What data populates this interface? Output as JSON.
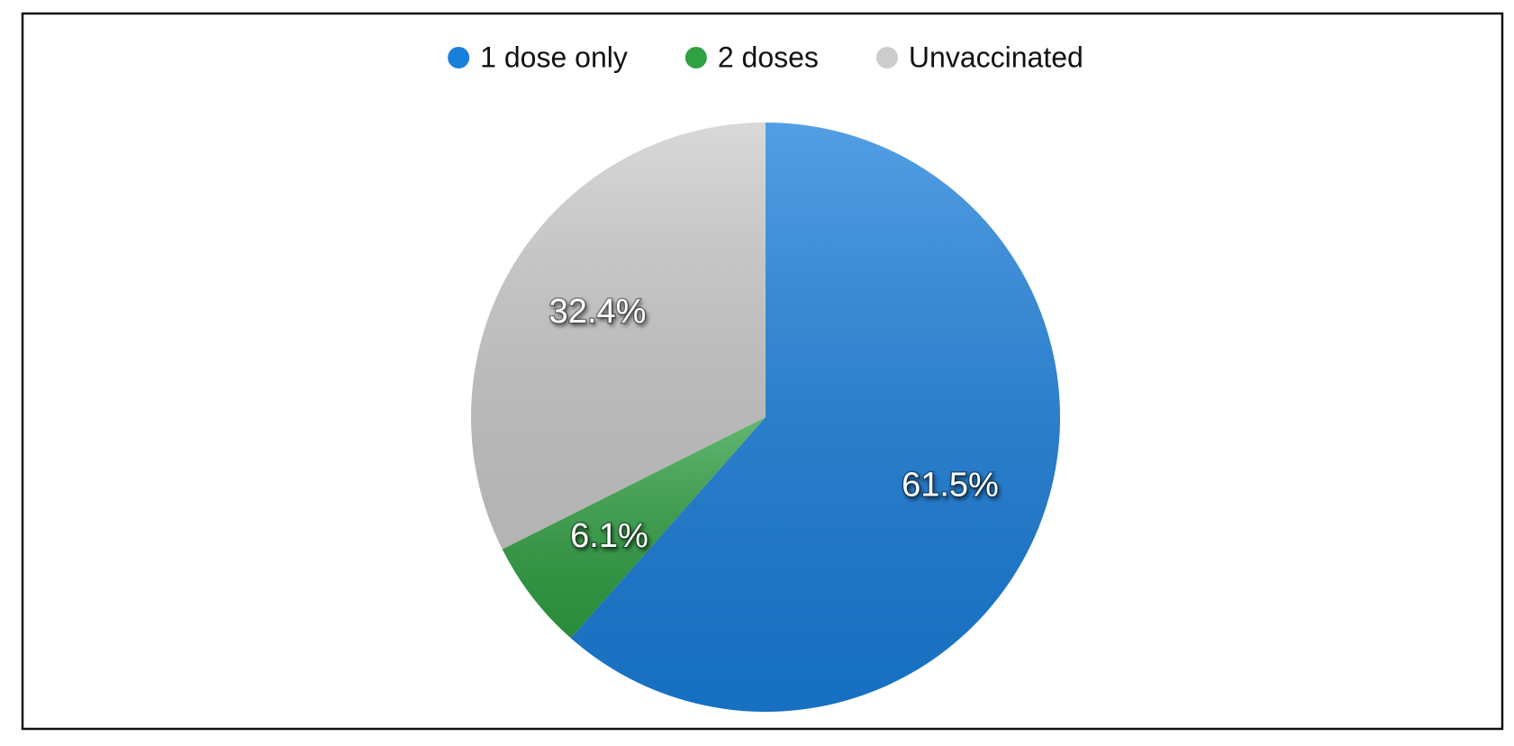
{
  "chart_data": {
    "type": "pie",
    "categories": [
      "1 dose only",
      "2 doses",
      "Unvaccinated"
    ],
    "values": [
      61.5,
      6.1,
      32.4
    ],
    "value_labels": [
      "61.5%",
      "6.1%",
      "32.4%"
    ],
    "colors": [
      "#1a7fdc",
      "#2fa043",
      "#cccccc"
    ],
    "legend": "top"
  }
}
